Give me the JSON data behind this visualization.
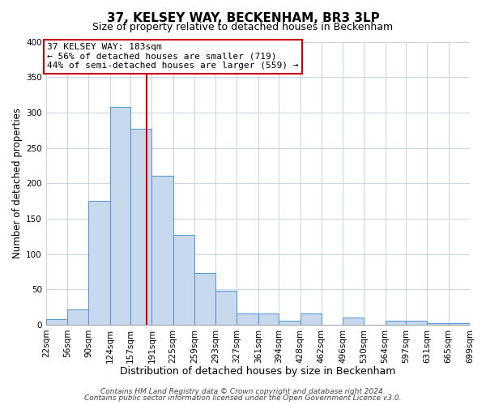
{
  "title": "37, KELSEY WAY, BECKENHAM, BR3 3LP",
  "subtitle": "Size of property relative to detached houses in Beckenham",
  "bin_edges": [
    22,
    56,
    90,
    124,
    157,
    191,
    225,
    259,
    293,
    327,
    361,
    394,
    428,
    462,
    496,
    530,
    564,
    597,
    631,
    665,
    699
  ],
  "bar_heights": [
    8,
    22,
    175,
    308,
    277,
    210,
    127,
    73,
    48,
    16,
    16,
    5,
    16,
    0,
    10,
    0,
    5,
    5,
    2,
    2
  ],
  "bar_color": "#c8d9ed",
  "bar_edge_color": "#5b9bd5",
  "property_line_x": 183,
  "property_line_color": "#cc0000",
  "xlabel": "Distribution of detached houses by size in Beckenham",
  "ylabel": "Number of detached properties",
  "ylim": [
    0,
    400
  ],
  "yticks": [
    0,
    50,
    100,
    150,
    200,
    250,
    300,
    350,
    400
  ],
  "annotation_title": "37 KELSEY WAY: 183sqm",
  "annotation_line1": "← 56% of detached houses are smaller (719)",
  "annotation_line2": "44% of semi-detached houses are larger (559) →",
  "annotation_box_color": "#ffffff",
  "annotation_box_edge": "#cc0000",
  "footer1": "Contains HM Land Registry data © Crown copyright and database right 2024.",
  "footer2": "Contains public sector information licensed under the Open Government Licence v3.0.",
  "background_color": "#ffffff",
  "grid_color": "#c8d4e0",
  "title_fontsize": 11,
  "subtitle_fontsize": 9,
  "xlabel_fontsize": 9,
  "ylabel_fontsize": 8.5,
  "tick_fontsize": 7.5,
  "annotation_fontsize": 8,
  "footer_fontsize": 6.5
}
